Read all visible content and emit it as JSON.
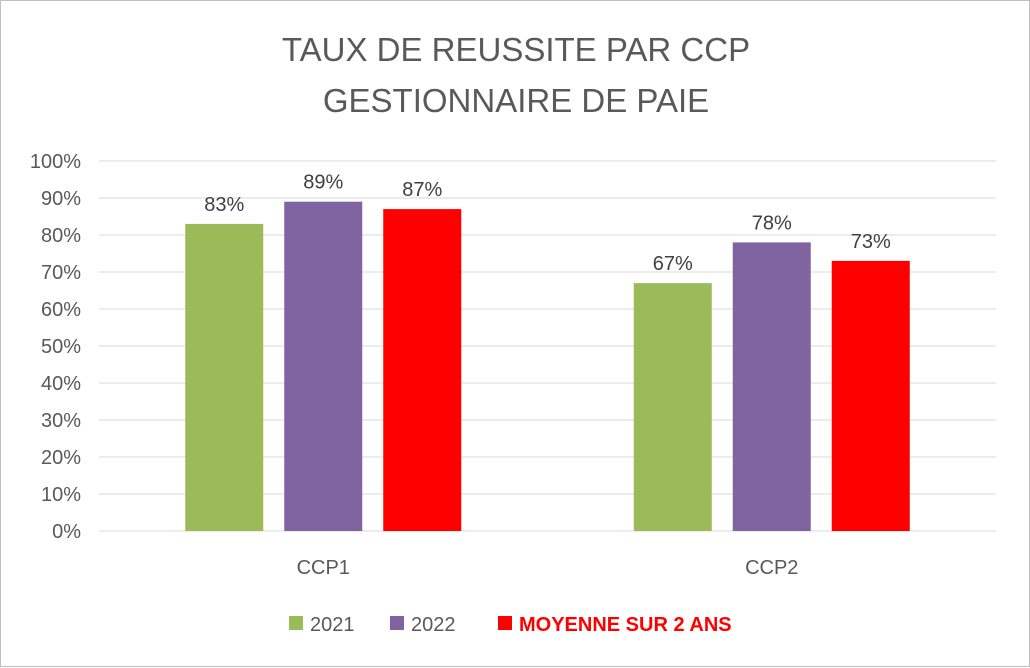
{
  "chart_data": {
    "type": "bar",
    "title_lines": [
      "TAUX DE REUSSITE PAR CCP",
      "GESTIONNAIRE DE PAIE"
    ],
    "categories": [
      "CCP1",
      "CCP2"
    ],
    "series": [
      {
        "name": "2021",
        "color": "#9bbb59",
        "values": [
          0.83,
          0.67
        ],
        "labels": [
          "83%",
          "67%"
        ]
      },
      {
        "name": "2022",
        "color": "#8064a2",
        "values": [
          0.89,
          0.78
        ],
        "labels": [
          "89%",
          "78%"
        ]
      },
      {
        "name": "MOYENNE SUR 2 ANS",
        "color": "#ff0000",
        "values": [
          0.87,
          0.73
        ],
        "labels": [
          "87%",
          "73%"
        ]
      }
    ],
    "y_ticks": [
      "0%",
      "10%",
      "20%",
      "30%",
      "40%",
      "50%",
      "60%",
      "70%",
      "80%",
      "90%",
      "100%"
    ],
    "ylim": [
      0,
      1
    ],
    "grid": true,
    "legend_position": "bottom"
  }
}
